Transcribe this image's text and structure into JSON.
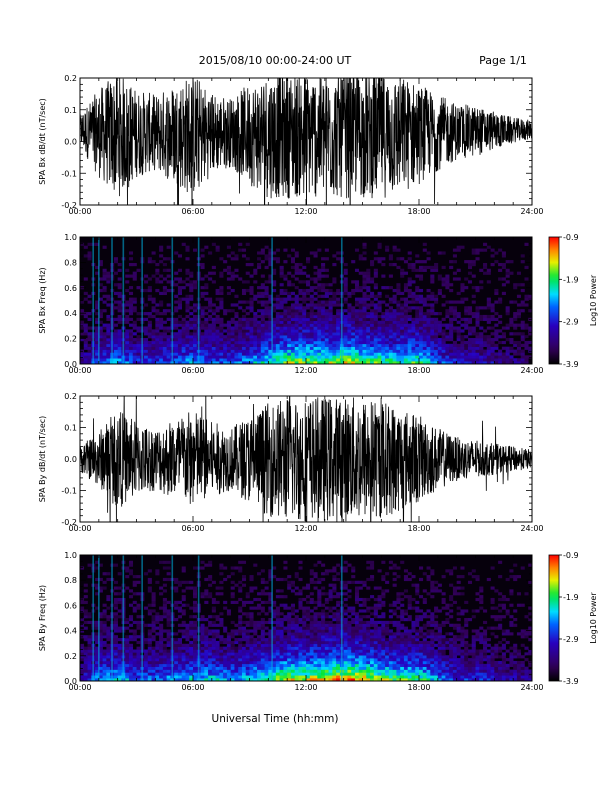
{
  "header": {
    "title": "2015/08/10  00:00-24:00 UT",
    "page": "Page 1/1"
  },
  "xlabel": "Universal Time (hh:mm)",
  "chart_data": [
    {
      "type": "line",
      "ylabel": "SPA Bx dB/dt (nT/sec)",
      "xlim": [
        0,
        24
      ],
      "ylim": [
        -0.2,
        0.2
      ],
      "x_ticks": [
        "00:00",
        "06:00",
        "12:00",
        "18:00",
        "24:00"
      ],
      "y_ticks": [
        "-0.2",
        "-0.1",
        "0.0",
        "0.1",
        "0.2"
      ],
      "y_tick_values": [
        -0.2,
        -0.1,
        0.0,
        0.1,
        0.2
      ],
      "series": [
        {
          "x": [
            0,
            1,
            2,
            3,
            4,
            5,
            6,
            7,
            8,
            9,
            10,
            11,
            12,
            13,
            14,
            15,
            16,
            17,
            18,
            19,
            20,
            21,
            22,
            23,
            24
          ],
          "envelope": [
            0.05,
            0.14,
            0.2,
            0.14,
            0.12,
            0.16,
            0.2,
            0.13,
            0.11,
            0.16,
            0.2,
            0.2,
            0.2,
            0.2,
            0.2,
            0.2,
            0.2,
            0.19,
            0.16,
            0.12,
            0.09,
            0.08,
            0.06,
            0.04,
            0.03
          ]
        }
      ],
      "baseline": 0.04
    },
    {
      "type": "heatmap",
      "ylabel": "SPA Bx Freq (Hz)",
      "xlim": [
        0,
        24
      ],
      "ylim": [
        0,
        1
      ],
      "x_ticks": [
        "00:00",
        "06:00",
        "12:00",
        "18:00",
        "24:00"
      ],
      "y_ticks": [
        "0.0",
        "0.2",
        "0.4",
        "0.6",
        "0.8",
        "1.0"
      ],
      "y_tick_values": [
        0.0,
        0.2,
        0.4,
        0.6,
        0.8,
        1.0
      ],
      "colorbar_label": "Log10 Power",
      "colorbar_ticks": [
        "-0.9",
        "-1.9",
        "-2.9",
        "-3.9"
      ],
      "colorbar_tick_values": [
        -0.9,
        -1.9,
        -2.9,
        -3.9
      ],
      "activity": [
        0.15,
        0.35,
        0.4,
        0.3,
        0.3,
        0.35,
        0.4,
        0.35,
        0.3,
        0.4,
        0.5,
        0.6,
        0.6,
        0.6,
        0.65,
        0.6,
        0.55,
        0.5,
        0.55,
        0.35,
        0.25,
        0.25,
        0.2,
        0.15,
        0.1
      ],
      "lines": [
        0.7,
        1.0,
        1.7,
        2.3,
        3.3,
        4.9,
        6.3,
        10.2,
        13.9
      ]
    },
    {
      "type": "line",
      "ylabel": "SPA By dB/dt (nT/sec)",
      "xlim": [
        0,
        24
      ],
      "ylim": [
        -0.2,
        0.2
      ],
      "x_ticks": [
        "00:00",
        "06:00",
        "12:00",
        "18:00",
        "24:00"
      ],
      "y_ticks": [
        "-0.2",
        "-0.1",
        "0.0",
        "0.1",
        "0.2"
      ],
      "y_tick_values": [
        -0.2,
        -0.1,
        0.0,
        0.1,
        0.2
      ],
      "series": [
        {
          "x": [
            0,
            1,
            2,
            3,
            4,
            5,
            6,
            7,
            8,
            9,
            10,
            11,
            12,
            13,
            14,
            15,
            16,
            17,
            18,
            19,
            20,
            21,
            22,
            23,
            24
          ],
          "envelope": [
            0.04,
            0.09,
            0.16,
            0.12,
            0.1,
            0.13,
            0.16,
            0.12,
            0.1,
            0.14,
            0.18,
            0.2,
            0.2,
            0.2,
            0.2,
            0.2,
            0.19,
            0.17,
            0.14,
            0.1,
            0.07,
            0.06,
            0.05,
            0.04,
            0.03
          ]
        }
      ],
      "baseline": 0.0
    },
    {
      "type": "heatmap",
      "ylabel": "SPA By Freq (Hz)",
      "xlim": [
        0,
        24
      ],
      "ylim": [
        0,
        1
      ],
      "x_ticks": [
        "00:00",
        "06:00",
        "12:00",
        "18:00",
        "24:00"
      ],
      "y_ticks": [
        "0.0",
        "0.2",
        "0.4",
        "0.6",
        "0.8",
        "1.0"
      ],
      "y_tick_values": [
        0.0,
        0.2,
        0.4,
        0.6,
        0.8,
        1.0
      ],
      "colorbar_label": "Log10 Power",
      "colorbar_ticks": [
        "-0.9",
        "-1.9",
        "-2.9",
        "-3.9"
      ],
      "colorbar_tick_values": [
        -0.9,
        -1.9,
        -2.9,
        -3.9
      ],
      "activity": [
        0.2,
        0.4,
        0.45,
        0.35,
        0.35,
        0.4,
        0.45,
        0.45,
        0.4,
        0.45,
        0.55,
        0.65,
        0.65,
        0.7,
        0.75,
        0.7,
        0.6,
        0.55,
        0.55,
        0.4,
        0.3,
        0.3,
        0.25,
        0.2,
        0.15
      ],
      "lines": [
        0.7,
        1.0,
        1.7,
        2.3,
        3.3,
        4.9,
        6.3,
        10.2,
        13.9
      ]
    }
  ]
}
